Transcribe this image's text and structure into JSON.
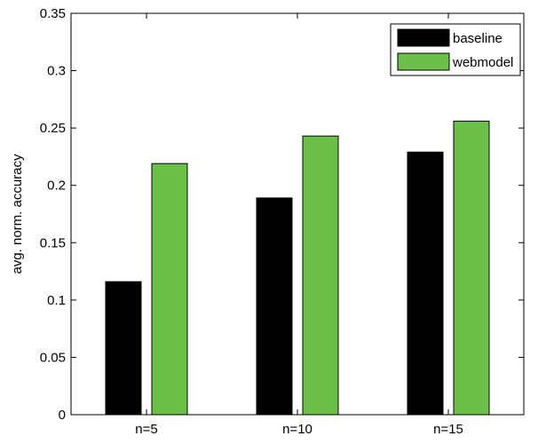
{
  "chart_data": {
    "type": "bar",
    "title": "",
    "xlabel": "",
    "ylabel": "avg. norm. accuracy",
    "categories": [
      "n=5",
      "n=10",
      "n=15"
    ],
    "series": [
      {
        "name": "baseline",
        "color": "#000000",
        "values": [
          0.116,
          0.189,
          0.229
        ]
      },
      {
        "name": "webmodel",
        "color": "#6cc04a",
        "values": [
          0.219,
          0.243,
          0.256
        ]
      }
    ],
    "ylim": [
      0,
      0.35
    ],
    "yticks": [
      0,
      0.05,
      0.1,
      0.15,
      0.2,
      0.25,
      0.3,
      0.35
    ],
    "ytick_labels": [
      "0",
      "0.05",
      "0.1",
      "0.15",
      "0.2",
      "0.25",
      "0.3",
      "0.35"
    ],
    "grid": false,
    "legend_position": "top-right"
  }
}
